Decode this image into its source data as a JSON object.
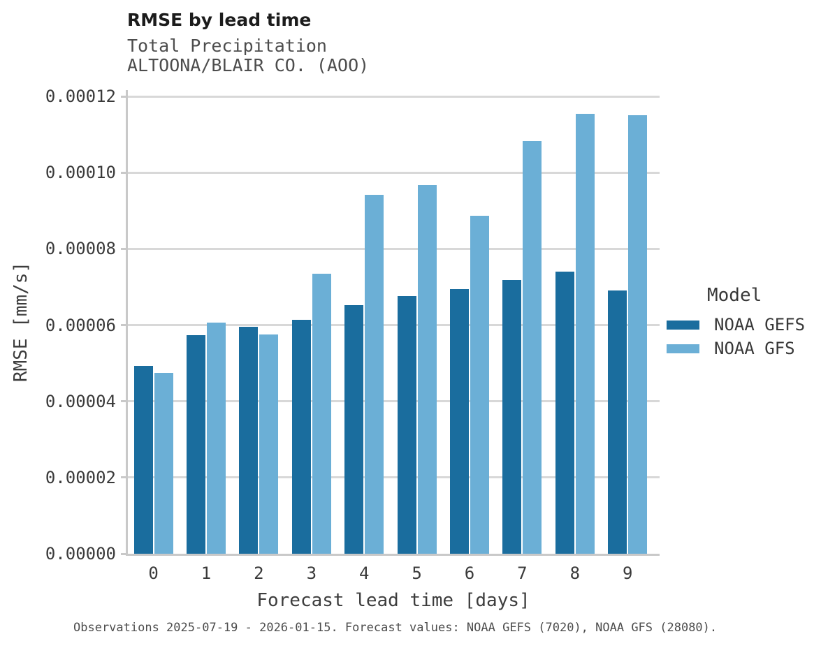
{
  "chart_data": {
    "type": "bar",
    "title": "RMSE by lead time",
    "subtitle1": "Total Precipitation",
    "subtitle2": "ALTOONA/BLAIR CO. (AOO)",
    "xlabel": "Forecast lead time [days]",
    "ylabel": "RMSE [mm/s]",
    "categories": [
      "0",
      "1",
      "2",
      "3",
      "4",
      "5",
      "6",
      "7",
      "8",
      "9"
    ],
    "series": [
      {
        "name": "NOAA GEFS",
        "color": "#1a6d9e",
        "values": [
          4.92e-05,
          5.73e-05,
          5.96e-05,
          6.14e-05,
          6.53e-05,
          6.76e-05,
          6.95e-05,
          7.19e-05,
          7.4e-05,
          6.9e-05
        ]
      },
      {
        "name": "NOAA GFS",
        "color": "#6bafd6",
        "values": [
          4.75e-05,
          6.06e-05,
          5.75e-05,
          7.35e-05,
          9.42e-05,
          9.67e-05,
          8.86e-05,
          0.0001083,
          0.0001155,
          0.000115
        ]
      }
    ],
    "ylim": [
      0,
      0.00012
    ],
    "yticks": [
      0,
      2e-05,
      4e-05,
      6e-05,
      8e-05,
      0.0001,
      0.00012
    ],
    "ytick_labels": [
      "0.00000",
      "0.00002",
      "0.00004",
      "0.00006",
      "0.00008",
      "0.00010",
      "0.00012"
    ],
    "grid": "horizontal-only",
    "legend": {
      "title": "Model",
      "position": "right"
    },
    "caption": "Observations 2025-07-19 - 2026-01-15. Forecast values: NOAA GEFS (7020), NOAA GFS (28080)."
  },
  "colors": {
    "gefs_dark_blue": "#1a6d9e",
    "gfs_light_blue": "#6bafd6",
    "gridline_gray": "#d8d8d8",
    "axis_gray": "#c9c9c9"
  }
}
